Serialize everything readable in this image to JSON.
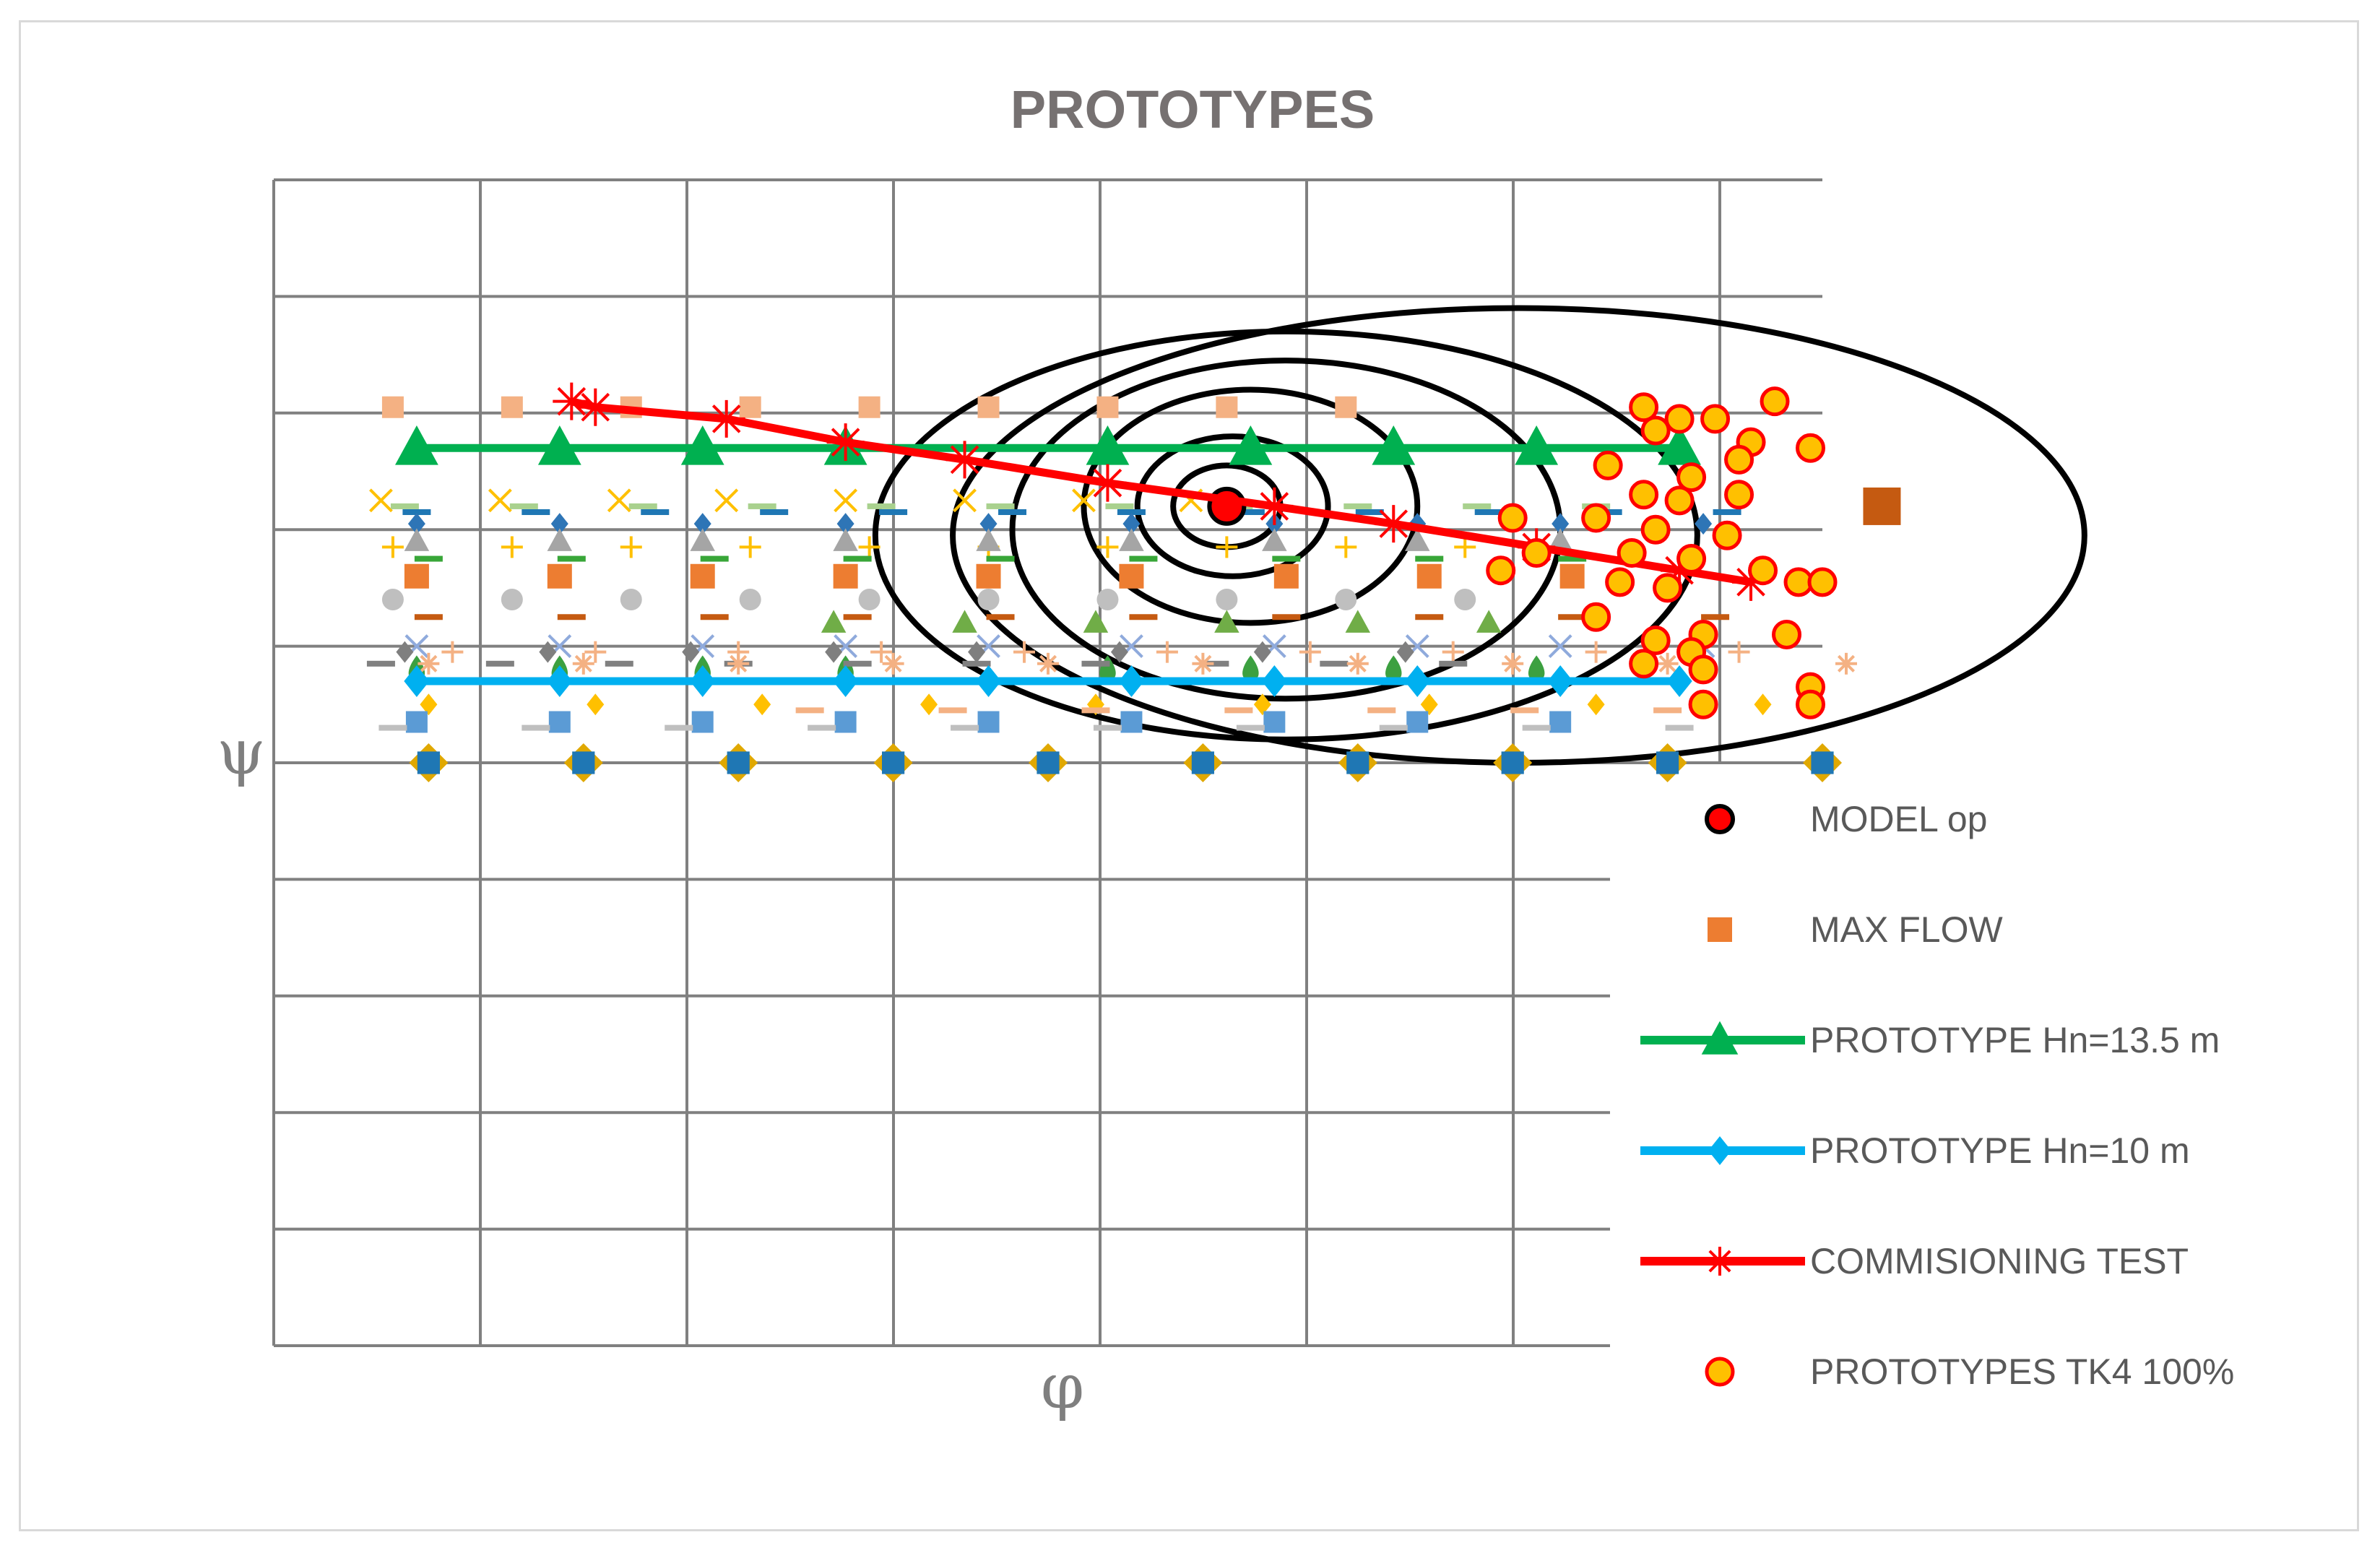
{
  "chart_data": {
    "type": "scatter",
    "title": "PROTOTYPES",
    "xlabel": "φ",
    "ylabel": "ψ",
    "xlim": [
      0,
      13
    ],
    "ylim": [
      0,
      10
    ],
    "grid": true,
    "tick_labels_shown": false,
    "legend_position": "right",
    "colors": {
      "grid": "#808080",
      "green": "#00b050",
      "blue": "#00b0f0",
      "red": "#ff0000",
      "orange": "#ed7d31",
      "tk4_fill": "#ffc000",
      "dark_orange": "#c55a11",
      "ring": "#000000",
      "teal": "#1f77b4",
      "gold": "#e0a800"
    },
    "series": [
      {
        "name": "MODEL op",
        "marker": "circle-black-edge",
        "color": "#ff0000",
        "points": [
          [
            8.0,
            7.2
          ]
        ]
      },
      {
        "name": "MAX FLOW",
        "marker": "square",
        "color": "#ed7d31",
        "points": [
          [
            1.2,
            6.6
          ],
          [
            2.4,
            6.6
          ],
          [
            3.6,
            6.6
          ],
          [
            4.8,
            6.6
          ],
          [
            6.0,
            6.6
          ],
          [
            7.2,
            6.6
          ],
          [
            8.5,
            6.6
          ],
          [
            9.7,
            6.6
          ],
          [
            10.9,
            6.6
          ],
          [
            13.5,
            7.2
          ]
        ]
      },
      {
        "name": "PROTOTYPE Hn=13.5 m",
        "marker": "triangle-line",
        "color": "#00b050",
        "points": [
          [
            1.2,
            7.7
          ],
          [
            2.4,
            7.7
          ],
          [
            3.6,
            7.7
          ],
          [
            4.8,
            7.7
          ],
          [
            7.0,
            7.7
          ],
          [
            8.2,
            7.7
          ],
          [
            9.4,
            7.7
          ],
          [
            10.6,
            7.7
          ],
          [
            11.8,
            7.7
          ]
        ]
      },
      {
        "name": "PROTOTYPE Hn=10 m",
        "marker": "diamond-line",
        "color": "#00b0f0",
        "points": [
          [
            1.2,
            5.7
          ],
          [
            2.4,
            5.7
          ],
          [
            3.6,
            5.7
          ],
          [
            4.8,
            5.7
          ],
          [
            6.0,
            5.7
          ],
          [
            7.2,
            5.7
          ],
          [
            8.4,
            5.7
          ],
          [
            9.6,
            5.7
          ],
          [
            10.8,
            5.7
          ],
          [
            11.8,
            5.7
          ]
        ]
      },
      {
        "name": "COMMISIONING TEST",
        "marker": "asterisk-line",
        "color": "#ff0000",
        "points": [
          [
            2.5,
            8.1
          ],
          [
            2.7,
            8.05
          ],
          [
            3.8,
            7.95
          ],
          [
            4.8,
            7.75
          ],
          [
            5.8,
            7.6
          ],
          [
            7.0,
            7.4
          ],
          [
            8.4,
            7.2
          ],
          [
            9.4,
            7.05
          ],
          [
            10.6,
            6.85
          ],
          [
            11.8,
            6.65
          ],
          [
            12.4,
            6.55
          ]
        ]
      },
      {
        "name": "PROTOTYPES TK4 100%",
        "marker": "circle-red-edge",
        "color": "#ffc000",
        "points": [
          [
            11.5,
            8.05
          ],
          [
            11.8,
            7.95
          ],
          [
            12.1,
            7.95
          ],
          [
            12.6,
            8.1
          ],
          [
            11.6,
            7.85
          ],
          [
            12.4,
            7.75
          ],
          [
            12.9,
            7.7
          ],
          [
            11.2,
            7.55
          ],
          [
            12.3,
            7.6
          ],
          [
            11.9,
            7.45
          ],
          [
            11.5,
            7.3
          ],
          [
            11.8,
            7.25
          ],
          [
            12.3,
            7.3
          ],
          [
            10.4,
            7.1
          ],
          [
            11.1,
            7.1
          ],
          [
            11.6,
            7.0
          ],
          [
            12.2,
            6.95
          ],
          [
            11.4,
            6.8
          ],
          [
            11.9,
            6.75
          ],
          [
            12.5,
            6.65
          ],
          [
            12.8,
            6.55
          ],
          [
            13.0,
            6.55
          ],
          [
            10.6,
            6.8
          ],
          [
            10.3,
            6.65
          ],
          [
            11.3,
            6.55
          ],
          [
            11.7,
            6.5
          ],
          [
            11.1,
            6.25
          ],
          [
            11.6,
            6.05
          ],
          [
            12.0,
            6.1
          ],
          [
            11.9,
            5.95
          ],
          [
            11.5,
            5.85
          ],
          [
            12.0,
            5.8
          ],
          [
            12.7,
            6.1
          ],
          [
            12.9,
            5.65
          ],
          [
            12.9,
            5.5
          ],
          [
            12.0,
            5.5
          ]
        ]
      }
    ],
    "background_series": [
      {
        "marker": "square",
        "color": "#f4b183",
        "y": 8.05,
        "x": [
          1.0,
          2.0,
          3.0,
          4.0,
          5.0,
          6.0,
          7.0,
          8.0,
          9.0
        ]
      },
      {
        "marker": "x",
        "color": "#ffc000",
        "y": 7.25,
        "x": [
          0.9,
          1.9,
          2.9,
          3.8,
          4.8,
          5.8,
          6.8,
          7.7
        ]
      },
      {
        "marker": "dash",
        "color": "#1f77b4",
        "y": 7.15,
        "x": [
          1.2,
          2.2,
          3.2,
          4.2,
          5.2,
          6.2,
          7.2,
          8.2,
          9.2,
          10.2,
          11.2,
          12.2
        ]
      },
      {
        "marker": "dash",
        "color": "#a9d18e",
        "y": 7.2,
        "x": [
          1.1,
          2.1,
          3.1,
          4.1,
          5.1,
          6.1,
          7.1,
          8.1,
          9.1,
          10.1,
          11.1
        ]
      },
      {
        "marker": "diamond",
        "color": "#2e75b6",
        "y": 7.05,
        "x": [
          1.2,
          2.4,
          3.6,
          4.8,
          6.0,
          7.2,
          8.4,
          9.6,
          10.8,
          12.0
        ]
      },
      {
        "marker": "plus",
        "color": "#ffc000",
        "y": 6.85,
        "x": [
          1.0,
          2.0,
          3.0,
          4.0,
          5.0,
          6.0,
          7.0,
          8.0,
          9.0,
          10.0
        ]
      },
      {
        "marker": "triangle",
        "color": "#a5a5a5",
        "y": 6.9,
        "x": [
          1.2,
          2.4,
          3.6,
          4.8,
          6.0,
          7.2,
          8.4,
          9.6,
          10.8
        ]
      },
      {
        "marker": "dash",
        "color": "#38a638",
        "y": 6.75,
        "x": [
          1.3,
          2.5,
          3.7,
          4.9,
          6.1,
          7.3,
          8.5,
          9.7,
          10.9
        ]
      },
      {
        "marker": "circle",
        "color": "#bfbfbf",
        "y": 6.4,
        "x": [
          1.0,
          2.0,
          3.0,
          4.0,
          5.0,
          6.0,
          7.0,
          8.0,
          9.0,
          10.0
        ]
      },
      {
        "marker": "dash",
        "color": "#c55a11",
        "y": 6.25,
        "x": [
          1.3,
          2.5,
          3.7,
          4.9,
          6.1,
          7.3,
          8.5,
          9.7,
          10.9,
          12.1
        ]
      },
      {
        "marker": "triangle",
        "color": "#70ad47",
        "y": 6.2,
        "x": [
          4.7,
          5.8,
          6.9,
          8.0,
          9.1,
          10.2
        ]
      },
      {
        "marker": "x",
        "color": "#8faadc",
        "y": 6.0,
        "x": [
          1.2,
          2.4,
          3.6,
          4.8,
          6.0,
          7.2,
          8.4,
          9.6,
          10.8,
          12.0
        ]
      },
      {
        "marker": "diamond",
        "color": "#7f7f7f",
        "y": 5.95,
        "x": [
          1.1,
          2.3,
          3.5,
          4.7,
          5.9,
          7.1,
          8.3,
          9.5
        ]
      },
      {
        "marker": "plus",
        "color": "#f4b183",
        "y": 5.95,
        "x": [
          1.5,
          2.7,
          3.9,
          5.1,
          6.3,
          7.5,
          8.7,
          9.9,
          11.1,
          12.3
        ]
      },
      {
        "marker": "drop",
        "color": "#3ca040",
        "y": 5.8,
        "x": [
          1.2,
          2.4,
          3.6,
          4.8,
          7.0,
          8.2,
          9.4,
          10.6
        ]
      },
      {
        "marker": "dash",
        "color": "#808080",
        "y": 5.85,
        "x": [
          0.9,
          1.9,
          2.9,
          3.9,
          4.9,
          5.9,
          6.9,
          7.9,
          8.9,
          9.9
        ]
      },
      {
        "marker": "asterisk",
        "color": "#f4b183",
        "y": 5.85,
        "x": [
          1.3,
          2.6,
          3.9,
          5.2,
          6.5,
          7.8,
          9.1,
          10.4,
          11.7,
          13.2
        ]
      },
      {
        "marker": "diamond",
        "color": "#ffc000",
        "y": 5.5,
        "x": [
          1.3,
          2.7,
          4.1,
          5.5,
          6.9,
          8.3,
          9.7,
          11.1,
          12.5
        ]
      },
      {
        "marker": "square",
        "color": "#5b9bd5",
        "y": 5.35,
        "x": [
          1.2,
          2.4,
          3.6,
          4.8,
          6.0,
          7.2,
          8.4,
          9.6,
          10.8
        ]
      },
      {
        "marker": "dash",
        "color": "#f4b183",
        "y": 5.45,
        "x": [
          4.5,
          5.7,
          6.9,
          8.1,
          9.3,
          10.5,
          11.7
        ]
      },
      {
        "marker": "dash",
        "color": "#bfbfbf",
        "y": 5.3,
        "x": [
          1.0,
          2.2,
          3.4,
          4.6,
          5.8,
          7.0,
          8.2,
          9.4,
          10.6,
          11.8
        ]
      },
      {
        "marker": "diamond-square",
        "color": "#e0a800",
        "secondary_color": "#1f77b4",
        "y": 5.0,
        "x": [
          1.3,
          2.6,
          3.9,
          5.2,
          6.5,
          7.8,
          9.1,
          10.4,
          11.7,
          13.0
        ]
      }
    ],
    "contours": {
      "center": [
        8.0,
        7.2
      ],
      "color": "#000000",
      "ellipses": [
        {
          "rx": 0.45,
          "ry": 0.35,
          "cx": 8.0,
          "cy": 7.2
        },
        {
          "rx": 0.8,
          "ry": 0.6,
          "cx": 8.05,
          "cy": 7.2
        },
        {
          "rx": 1.4,
          "ry": 1.0,
          "cx": 8.2,
          "cy": 7.2
        },
        {
          "rx": 2.3,
          "ry": 1.45,
          "cx": 8.5,
          "cy": 7.0
        },
        {
          "rx": 3.45,
          "ry": 1.75,
          "cx": 8.5,
          "cy": 6.95
        },
        {
          "rx": 4.75,
          "ry": 1.95,
          "cx": 10.45,
          "cy": 6.95
        }
      ]
    }
  }
}
